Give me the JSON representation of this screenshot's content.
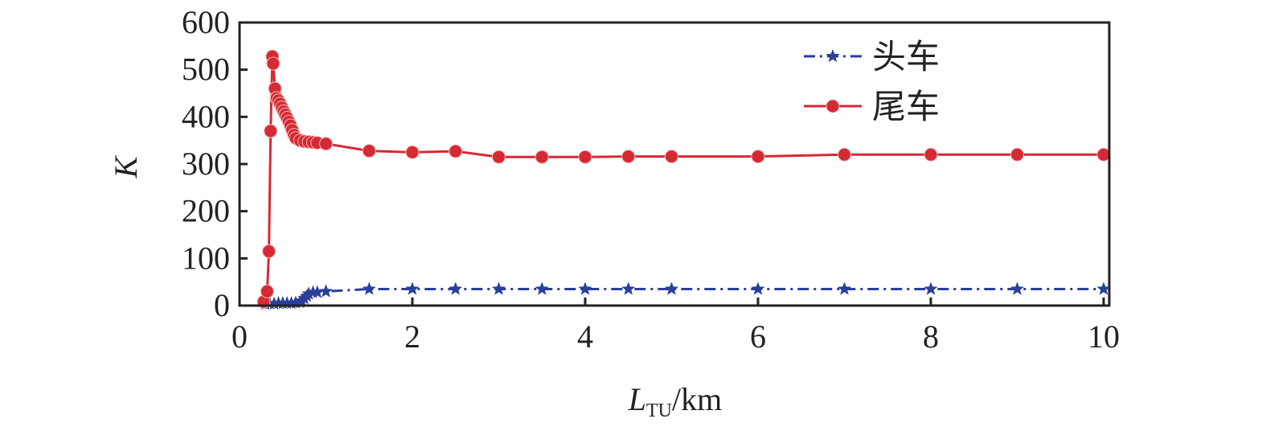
{
  "chart_data": {
    "type": "line",
    "title": "",
    "xlabel_main": "L",
    "xlabel_sub": "TU",
    "xlabel_unit": "/km",
    "ylabel": "K",
    "xlim": [
      0,
      10
    ],
    "ylim": [
      0,
      600
    ],
    "xticks": [
      0,
      2,
      4,
      6,
      8,
      10
    ],
    "yticks": [
      0,
      100,
      200,
      300,
      400,
      500,
      600
    ],
    "legend_position": "top-right",
    "series": [
      {
        "name": "头车",
        "color": "#2a3f9a",
        "marker": "star",
        "linestyle": "dashdot",
        "x": [
          0.3,
          0.35,
          0.4,
          0.45,
          0.5,
          0.55,
          0.6,
          0.65,
          0.7,
          0.72,
          0.75,
          0.78,
          0.8,
          0.85,
          0.9,
          1,
          1.5,
          2,
          2.5,
          3,
          3.5,
          4,
          4.5,
          5,
          6,
          7,
          8,
          9,
          10
        ],
        "y": [
          3,
          4,
          4,
          5,
          5,
          5,
          5,
          6,
          7,
          10,
          15,
          20,
          25,
          28,
          28,
          30,
          35,
          35,
          35,
          35,
          35,
          35,
          35,
          35,
          35,
          35,
          35,
          35,
          35
        ]
      },
      {
        "name": "尾车",
        "color": "#d42a33",
        "marker": "circle",
        "linestyle": "solid",
        "x": [
          0.28,
          0.32,
          0.34,
          0.36,
          0.38,
          0.39,
          0.41,
          0.43,
          0.45,
          0.47,
          0.49,
          0.51,
          0.53,
          0.55,
          0.57,
          0.59,
          0.61,
          0.63,
          0.65,
          0.7,
          0.75,
          0.8,
          0.85,
          0.9,
          1,
          1.5,
          2,
          2.5,
          3,
          3.5,
          4,
          4.5,
          5,
          6,
          7,
          8,
          9,
          10
        ],
        "y": [
          8,
          30,
          115,
          370,
          528,
          513,
          460,
          440,
          435,
          428,
          420,
          412,
          405,
          398,
          390,
          382,
          372,
          362,
          355,
          350,
          348,
          347,
          346,
          345,
          343,
          328,
          325,
          327,
          315,
          315,
          315,
          316,
          316,
          316,
          320,
          320,
          320,
          320
        ]
      }
    ]
  }
}
